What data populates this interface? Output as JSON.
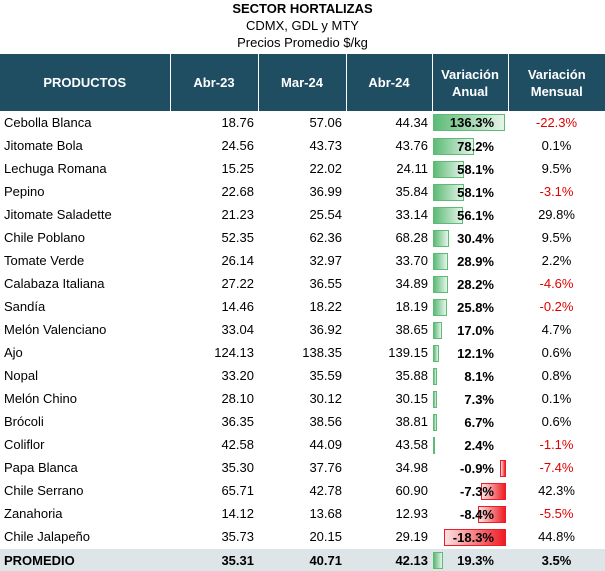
{
  "title": "SECTOR HORTALIZAS",
  "subtitle": "CDMX, GDL y MTY",
  "subtitle2": "Precios Promedio $/kg",
  "headers": {
    "product": "PRODUCTOS",
    "c1": "Abr-23",
    "c2": "Mar-24",
    "c3": "Abr-24",
    "va_line1": "Variación",
    "va_line2": "Anual",
    "vm_line1": "Variación",
    "vm_line2": "Mensual"
  },
  "colors": {
    "header_bg": "#1f4e63",
    "positive_bar": "#5dbb76",
    "negative_bar": "#ee1c24",
    "negative_text": "#e00000",
    "summary_bg": "#dde5e8"
  },
  "rows": [
    {
      "name": "Cebolla Blanca",
      "a": "18.76",
      "m": "57.06",
      "b": "44.34",
      "va": "136.3%",
      "va_n": 136.3,
      "vm": "-22.3%"
    },
    {
      "name": "Jitomate Bola",
      "a": "24.56",
      "m": "43.73",
      "b": "43.76",
      "va": "78.2%",
      "va_n": 78.2,
      "vm": "0.1%"
    },
    {
      "name": "Lechuga Romana",
      "a": "15.25",
      "m": "22.02",
      "b": "24.11",
      "va": "58.1%",
      "va_n": 58.1,
      "vm": "9.5%"
    },
    {
      "name": "Pepino",
      "a": "22.68",
      "m": "36.99",
      "b": "35.84",
      "va": "58.1%",
      "va_n": 58.1,
      "vm": "-3.1%"
    },
    {
      "name": "Jitomate Saladette",
      "a": "21.23",
      "m": "25.54",
      "b": "33.14",
      "va": "56.1%",
      "va_n": 56.1,
      "vm": "29.8%"
    },
    {
      "name": "Chile Poblano",
      "a": "52.35",
      "m": "62.36",
      "b": "68.28",
      "va": "30.4%",
      "va_n": 30.4,
      "vm": "9.5%"
    },
    {
      "name": "Tomate Verde",
      "a": "26.14",
      "m": "32.97",
      "b": "33.70",
      "va": "28.9%",
      "va_n": 28.9,
      "vm": "2.2%"
    },
    {
      "name": "Calabaza Italiana",
      "a": "27.22",
      "m": "36.55",
      "b": "34.89",
      "va": "28.2%",
      "va_n": 28.2,
      "vm": "-4.6%"
    },
    {
      "name": "Sandía",
      "a": "14.46",
      "m": "18.22",
      "b": "18.19",
      "va": "25.8%",
      "va_n": 25.8,
      "vm": "-0.2%"
    },
    {
      "name": "Melón Valenciano",
      "a": "33.04",
      "m": "36.92",
      "b": "38.65",
      "va": "17.0%",
      "va_n": 17.0,
      "vm": "4.7%"
    },
    {
      "name": "Ajo",
      "a": "124.13",
      "m": "138.35",
      "b": "139.15",
      "va": "12.1%",
      "va_n": 12.1,
      "vm": "0.6%"
    },
    {
      "name": "Nopal",
      "a": "33.20",
      "m": "35.59",
      "b": "35.88",
      "va": "8.1%",
      "va_n": 8.1,
      "vm": "0.8%"
    },
    {
      "name": "Melón Chino",
      "a": "28.10",
      "m": "30.12",
      "b": "30.15",
      "va": "7.3%",
      "va_n": 7.3,
      "vm": "0.1%"
    },
    {
      "name": "Brócoli",
      "a": "36.35",
      "m": "38.56",
      "b": "38.81",
      "va": "6.7%",
      "va_n": 6.7,
      "vm": "0.6%"
    },
    {
      "name": "Coliflor",
      "a": "42.58",
      "m": "44.09",
      "b": "43.58",
      "va": "2.4%",
      "va_n": 2.4,
      "vm": "-1.1%"
    },
    {
      "name": "Papa Blanca",
      "a": "35.30",
      "m": "37.76",
      "b": "34.98",
      "va": "-0.9%",
      "va_n": -0.9,
      "vm": "-7.4%"
    },
    {
      "name": "Chile Serrano",
      "a": "65.71",
      "m": "42.78",
      "b": "60.90",
      "va": "-7.3%",
      "va_n": -7.3,
      "vm": "42.3%"
    },
    {
      "name": "Zanahoria",
      "a": "14.12",
      "m": "13.68",
      "b": "12.93",
      "va": "-8.4%",
      "va_n": -8.4,
      "vm": "-5.5%"
    },
    {
      "name": "Chile Jalapeño",
      "a": "35.73",
      "m": "20.15",
      "b": "29.19",
      "va": "-18.3%",
      "va_n": -18.3,
      "vm": "44.8%"
    }
  ],
  "promedio": {
    "name": "PROMEDIO",
    "a": "35.31",
    "m": "40.71",
    "b": "42.13",
    "va": "19.3%",
    "va_n": 19.3,
    "vm": "3.5%"
  }
}
